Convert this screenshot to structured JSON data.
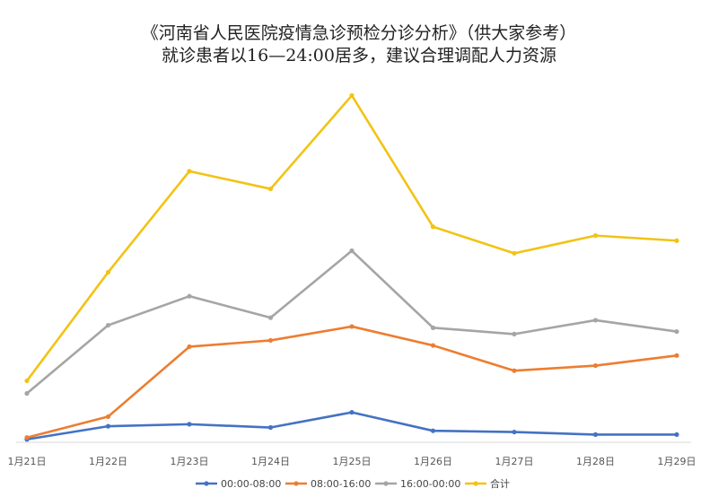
{
  "chart_data": {
    "type": "line",
    "title": "《河南省人民医院疫情急诊预检分诊分析》（供大家参考）",
    "subtitle": "就诊患者以16—24:00居多，建议合理调配人力资源",
    "categories": [
      "1月21日",
      "1月22日",
      "1月23日",
      "1月24日",
      "1月25日",
      "1月26日",
      "1月27日",
      "1月28日",
      "1月29日"
    ],
    "series": [
      {
        "name": "00:00-08:00",
        "color": "#4472c4",
        "values": [
          0.8,
          6.0,
          6.8,
          5.5,
          11.5,
          4.2,
          3.7,
          2.7,
          2.7
        ]
      },
      {
        "name": "08:00-16:00",
        "color": "#ed7d31",
        "values": [
          1.5,
          9.8,
          37.5,
          40.0,
          45.5,
          38.0,
          28.0,
          30.0,
          34.0
        ]
      },
      {
        "name": "16:00-00:00",
        "color": "#a5a5a5",
        "values": [
          19.0,
          46.0,
          57.5,
          49.0,
          75.5,
          45.0,
          42.5,
          48.0,
          43.5
        ]
      },
      {
        "name": "合计",
        "color": "#f2c314",
        "values": [
          24.0,
          67.0,
          107.0,
          100.0,
          137.0,
          85.0,
          74.5,
          81.5,
          79.5
        ]
      }
    ],
    "ylim": [
      0,
      140
    ],
    "grid": false,
    "legend": "bottom"
  }
}
